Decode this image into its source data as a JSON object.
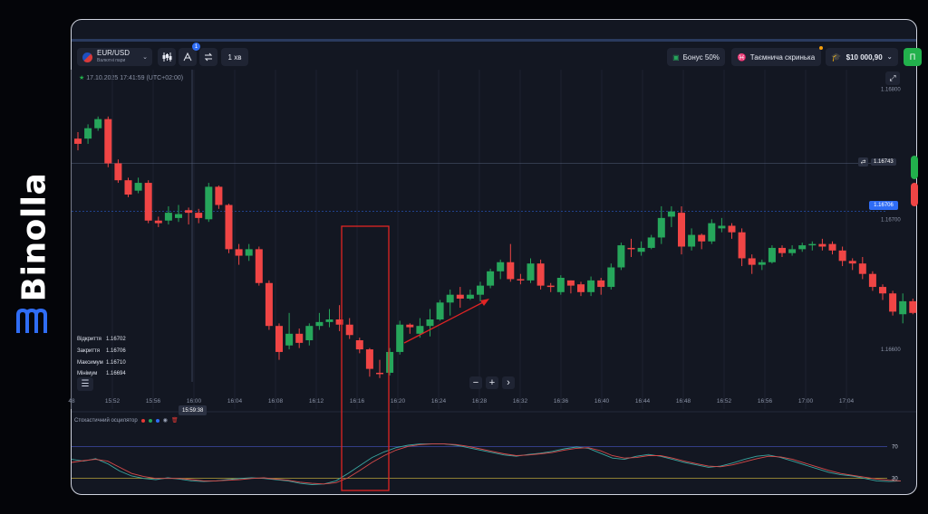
{
  "brand": {
    "name": "Binolla"
  },
  "toolbar": {
    "asset_pair": "EUR/USD",
    "asset_type": "Валютні пари",
    "indicators_badge": "1",
    "timeframe": "1 хв",
    "bonus_label": "Бонус 50%",
    "chest_label": "Таємнича скринька",
    "balance": "$10 000,90",
    "trade_btn": "П"
  },
  "chart_header": {
    "datetime": "17.10.2025  17:41:59  (UTC+02:00)"
  },
  "ohlc": {
    "open_label": "Відкриття",
    "open": "1.16702",
    "close_label": "Закриття",
    "close": "1.16706",
    "high_label": "Максимум",
    "high": "1.16710",
    "low_label": "Мінімум",
    "low": "1.16694"
  },
  "crosshair_time": "15:59:38",
  "oscillator_label": "Стохастичний осцилятор",
  "colors": {
    "bull": "#26a65b",
    "bear": "#f04545",
    "accent": "#2f6df6",
    "highlight": "#e02424",
    "k_line": "#3aa6a0",
    "d_line": "#d84a4a"
  },
  "chart_data": {
    "type": "candlestick",
    "x_ticks": [
      "48",
      "15:52",
      "15:56",
      "16:00",
      "16:04",
      "16:08",
      "16:12",
      "16:16",
      "16:20",
      "16:24",
      "16:28",
      "16:32",
      "16:36",
      "16:40",
      "16:44",
      "16:48",
      "16:52",
      "16:56",
      "17:00",
      "17:04"
    ],
    "y_ticks": [
      "1.16800",
      "1.16700",
      "1.16600"
    ],
    "ylim": [
      1.16575,
      1.16815
    ],
    "crosshair_price": "1.16743",
    "current_price": "1.16706",
    "candles": [
      [
        1.16762,
        1.16758,
        1.16767,
        1.16753
      ],
      [
        1.16762,
        1.1677,
        1.16773,
        1.16758
      ],
      [
        1.1677,
        1.16777,
        1.16779,
        1.16768
      ],
      [
        1.16777,
        1.16743,
        1.16779,
        1.1674
      ],
      [
        1.16743,
        1.1673,
        1.16746,
        1.16728
      ],
      [
        1.1673,
        1.16719,
        1.16732,
        1.16717
      ],
      [
        1.16722,
        1.16728,
        1.16732,
        1.1672
      ],
      [
        1.16728,
        1.16699,
        1.1673,
        1.16697
      ],
      [
        1.16699,
        1.16697,
        1.16702,
        1.16694
      ],
      [
        1.16699,
        1.16705,
        1.1671,
        1.16696
      ],
      [
        1.16701,
        1.16704,
        1.16711,
        1.16698
      ],
      [
        1.16707,
        1.16705,
        1.16709,
        1.16696
      ],
      [
        1.16705,
        1.16701,
        1.16708,
        1.16697
      ],
      [
        1.167,
        1.16725,
        1.16728,
        1.16698
      ],
      [
        1.16725,
        1.16711,
        1.16726,
        1.16708
      ],
      [
        1.16711,
        1.16677,
        1.16712,
        1.16674
      ],
      [
        1.16677,
        1.16672,
        1.16681,
        1.16665
      ],
      [
        1.16672,
        1.16677,
        1.16681,
        1.16668
      ],
      [
        1.16677,
        1.16651,
        1.16679,
        1.16649
      ],
      [
        1.16651,
        1.16618,
        1.16653,
        1.16615
      ],
      [
        1.16618,
        1.16598,
        1.1662,
        1.16592
      ],
      [
        1.16603,
        1.16612,
        1.16628,
        1.166
      ],
      [
        1.16612,
        1.16605,
        1.16616,
        1.16601
      ],
      [
        1.16607,
        1.16618,
        1.1662,
        1.16603
      ],
      [
        1.16618,
        1.16621,
        1.16628,
        1.16615
      ],
      [
        1.16621,
        1.16623,
        1.16631,
        1.16617
      ],
      [
        1.16623,
        1.16619,
        1.16634,
        1.16614
      ],
      [
        1.16619,
        1.16611,
        1.16624,
        1.16608
      ],
      [
        1.16607,
        1.166,
        1.16609,
        1.16597
      ],
      [
        1.166,
        1.16585,
        1.16601,
        1.16579
      ],
      [
        1.16582,
        1.16581,
        1.16592,
        1.16578
      ],
      [
        1.16582,
        1.16598,
        1.16601,
        1.1658
      ],
      [
        1.16598,
        1.16619,
        1.16622,
        1.16596
      ],
      [
        1.16619,
        1.16617,
        1.1662,
        1.16612
      ],
      [
        1.16612,
        1.16618,
        1.16624,
        1.16609
      ],
      [
        1.16618,
        1.16623,
        1.16631,
        1.1661
      ],
      [
        1.16623,
        1.16636,
        1.16638,
        1.16622
      ],
      [
        1.16636,
        1.16642,
        1.16646,
        1.16626
      ],
      [
        1.16642,
        1.16639,
        1.16648,
        1.16632
      ],
      [
        1.16639,
        1.16642,
        1.16646,
        1.16638
      ],
      [
        1.16642,
        1.16649,
        1.16652,
        1.16637
      ],
      [
        1.16649,
        1.1666,
        1.16662,
        1.16647
      ],
      [
        1.1666,
        1.16667,
        1.16669,
        1.16654
      ],
      [
        1.16667,
        1.16654,
        1.16681,
        1.16652
      ],
      [
        1.16654,
        1.16653,
        1.16658,
        1.1665
      ],
      [
        1.16653,
        1.16666,
        1.1667,
        1.16651
      ],
      [
        1.16666,
        1.16649,
        1.16669,
        1.16646
      ],
      [
        1.16649,
        1.16648,
        1.16651,
        1.16644
      ],
      [
        1.16644,
        1.16655,
        1.16657,
        1.16642
      ],
      [
        1.16653,
        1.16649,
        1.16653,
        1.16643
      ],
      [
        1.1665,
        1.16644,
        1.16652,
        1.16641
      ],
      [
        1.16644,
        1.16653,
        1.16656,
        1.16641
      ],
      [
        1.16653,
        1.16648,
        1.16655,
        1.16642
      ],
      [
        1.16648,
        1.16663,
        1.16666,
        1.16646
      ],
      [
        1.16663,
        1.1668,
        1.16682,
        1.16661
      ],
      [
        1.16678,
        1.16677,
        1.16685,
        1.16671
      ],
      [
        1.16675,
        1.16678,
        1.16683,
        1.16672
      ],
      [
        1.16678,
        1.16686,
        1.16688,
        1.16677
      ],
      [
        1.16686,
        1.16701,
        1.1671,
        1.16681
      ],
      [
        1.16702,
        1.16706,
        1.1671,
        1.16694
      ],
      [
        1.16705,
        1.16679,
        1.1671,
        1.16673
      ],
      [
        1.16679,
        1.16688,
        1.16693,
        1.16676
      ],
      [
        1.16688,
        1.16683,
        1.16689,
        1.16677
      ],
      [
        1.16683,
        1.16697,
        1.167,
        1.16681
      ],
      [
        1.16693,
        1.16695,
        1.16701,
        1.1669
      ],
      [
        1.16695,
        1.1669,
        1.16697,
        1.16685
      ],
      [
        1.1669,
        1.1667,
        1.16693,
        1.16664
      ],
      [
        1.1667,
        1.16665,
        1.16673,
        1.16658
      ],
      [
        1.16665,
        1.16667,
        1.16669,
        1.16661
      ],
      [
        1.16667,
        1.16678,
        1.1668,
        1.16666
      ],
      [
        1.16678,
        1.16674,
        1.1668,
        1.16671
      ],
      [
        1.16674,
        1.16677,
        1.1668,
        1.16672
      ],
      [
        1.16677,
        1.1668,
        1.16682,
        1.16675
      ],
      [
        1.1668,
        1.16681,
        1.16683,
        1.16676
      ],
      [
        1.16681,
        1.16679,
        1.16685,
        1.16676
      ],
      [
        1.16681,
        1.16676,
        1.16683,
        1.16673
      ],
      [
        1.16676,
        1.16668,
        1.16679,
        1.16664
      ],
      [
        1.16668,
        1.16666,
        1.1667,
        1.16661
      ],
      [
        1.16666,
        1.16658,
        1.16671,
        1.16654
      ],
      [
        1.16658,
        1.16648,
        1.1666,
        1.16645
      ],
      [
        1.16648,
        1.16643,
        1.1665,
        1.16638
      ],
      [
        1.16643,
        1.16629,
        1.16645,
        1.16626
      ],
      [
        1.16627,
        1.16637,
        1.16643,
        1.1662
      ],
      [
        1.16637,
        1.16628,
        1.16639,
        1.16627
      ]
    ],
    "oscillator": {
      "levels": [
        70,
        30
      ],
      "k": [
        55,
        52,
        56,
        48,
        36,
        28,
        24,
        22,
        25,
        23,
        20,
        19,
        20,
        22,
        24,
        25,
        24,
        22,
        20,
        16,
        14,
        15,
        20,
        32,
        45,
        58,
        67,
        74,
        78,
        80,
        80,
        80,
        78,
        74,
        70,
        66,
        62,
        60,
        63,
        65,
        68,
        72,
        75,
        73,
        65,
        57,
        55,
        60,
        63,
        60,
        55,
        50,
        46,
        42,
        44,
        49,
        55,
        60,
        62,
        58,
        52,
        46,
        40,
        34,
        30,
        28,
        24,
        20,
        19,
        20
      ],
      "d": [
        50,
        53,
        55,
        52,
        42,
        32,
        27,
        24,
        24,
        24,
        22,
        20,
        20,
        21,
        22,
        24,
        25,
        23,
        21,
        18,
        16,
        15,
        17,
        25,
        37,
        50,
        61,
        70,
        76,
        79,
        80,
        80,
        79,
        76,
        72,
        68,
        64,
        61,
        62,
        64,
        66,
        70,
        73,
        74,
        69,
        61,
        57,
        58,
        61,
        61,
        57,
        52,
        48,
        44,
        43,
        46,
        51,
        56,
        60,
        59,
        55,
        49,
        43,
        37,
        32,
        29,
        26,
        23,
        21,
        20
      ]
    }
  }
}
